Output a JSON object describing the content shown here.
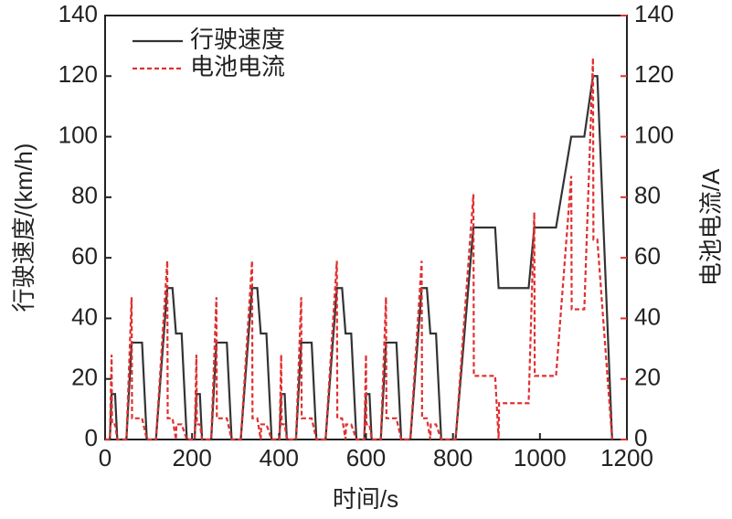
{
  "chart_data": {
    "type": "line",
    "xlabel": "时间/s",
    "ylabel": "行驶速度/(km/h)",
    "y2label": "电池电流/A",
    "x": [
      0,
      11,
      15,
      16,
      23,
      28,
      49,
      61,
      62,
      85,
      96,
      117,
      143,
      144,
      155,
      163,
      164,
      176,
      188,
      195,
      206,
      210,
      211,
      218,
      223,
      244,
      256,
      257,
      280,
      291,
      312,
      338,
      339,
      350,
      358,
      359,
      371,
      383,
      390,
      401,
      405,
      406,
      413,
      418,
      439,
      451,
      452,
      475,
      486,
      507,
      533,
      534,
      545,
      553,
      554,
      566,
      578,
      585,
      596,
      600,
      601,
      608,
      613,
      634,
      646,
      647,
      670,
      681,
      702,
      728,
      729,
      740,
      748,
      749,
      761,
      773,
      806,
      847,
      848,
      897,
      905,
      906,
      974,
      987,
      988,
      1037,
      1072,
      1073,
      1102,
      1122,
      1123,
      1132,
      1166
    ],
    "series": [
      {
        "name": "行驶速度",
        "color": "#333333",
        "dash": false,
        "values": [
          0,
          0,
          15,
          15,
          15,
          0,
          0,
          32,
          32,
          32,
          0,
          0,
          50,
          50,
          50,
          35,
          35,
          35,
          0,
          0,
          0,
          15,
          15,
          15,
          0,
          0,
          32,
          32,
          32,
          0,
          0,
          50,
          50,
          50,
          35,
          35,
          35,
          0,
          0,
          0,
          15,
          15,
          15,
          0,
          0,
          32,
          32,
          32,
          0,
          0,
          50,
          50,
          50,
          35,
          35,
          35,
          0,
          0,
          0,
          15,
          15,
          15,
          0,
          0,
          32,
          32,
          32,
          0,
          0,
          50,
          50,
          50,
          35,
          35,
          35,
          0,
          0,
          70,
          70,
          70,
          50,
          50,
          50,
          70,
          70,
          70,
          100,
          100,
          100,
          120,
          120,
          120,
          0
        ]
      },
      {
        "name": "电池电流",
        "color": "#e03030",
        "dash": true,
        "axis": "y2",
        "values": [
          0,
          0,
          28,
          5,
          5,
          0,
          0,
          47,
          7,
          7,
          0,
          0,
          59,
          7,
          7,
          0,
          5,
          5,
          0,
          0,
          0,
          28,
          5,
          5,
          0,
          0,
          47,
          7,
          7,
          0,
          0,
          59,
          7,
          7,
          0,
          5,
          5,
          0,
          0,
          0,
          28,
          5,
          5,
          0,
          0,
          47,
          7,
          7,
          0,
          0,
          59,
          7,
          7,
          0,
          5,
          5,
          0,
          0,
          0,
          28,
          5,
          5,
          0,
          0,
          47,
          7,
          7,
          0,
          0,
          59,
          7,
          7,
          0,
          5,
          5,
          0,
          0,
          81,
          21,
          21,
          0,
          12,
          12,
          75,
          21,
          21,
          87,
          43,
          43,
          126,
          66,
          66,
          0
        ]
      }
    ],
    "xlim": [
      0,
      1200
    ],
    "xticks": [
      0,
      200,
      400,
      600,
      800,
      1000,
      1200
    ],
    "ylim": [
      0,
      140
    ],
    "yticks": [
      0,
      20,
      40,
      60,
      80,
      100,
      120,
      140
    ],
    "y2lim": [
      0,
      140
    ],
    "y2ticks": [
      0,
      20,
      40,
      60,
      80,
      100,
      120,
      140
    ],
    "y2color": "#e03030",
    "legend": "upper left",
    "grid": false
  }
}
